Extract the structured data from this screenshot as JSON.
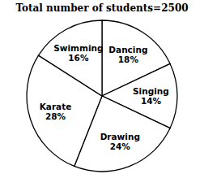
{
  "chart_data": {
    "type": "pie",
    "title": "Total number of students=2500",
    "categories": [
      "Dancing",
      "Singing",
      "Drawing",
      "Karate",
      "Swimming"
    ],
    "values": [
      18,
      14,
      24,
      28,
      16
    ],
    "value_labels": [
      "18%",
      "14%",
      "24%",
      "28%",
      "16%"
    ],
    "colors": [
      "#ffffff",
      "#ffffff",
      "#ffffff",
      "#ffffff",
      "#ffffff"
    ],
    "data_labels": true
  }
}
